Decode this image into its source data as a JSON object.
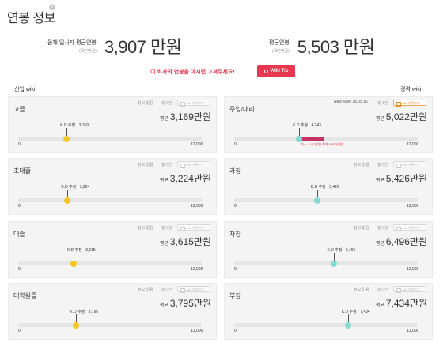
{
  "title": "연봉 정보",
  "summary": {
    "new_hire": {
      "label": "올해 입사자 평균연봉",
      "sub": "(국민연금)",
      "value": "3,907 만원"
    },
    "avg": {
      "label": "평균연봉",
      "sub": "(국민연금)",
      "value": "5,503 만원"
    }
  },
  "notice": "이 회사의 연봉을 아시면 고쳐주세요!",
  "wiki_tip": "Wiki Tip",
  "columns": {
    "left": "신입 wiki",
    "right": "경력 wiki"
  },
  "common": {
    "info": "정보 없음",
    "count": "총 0건",
    "wiki_btn": "wiki 기록보기",
    "avg_prefix": "평균",
    "min": "0",
    "max": "12,000",
    "kd_prefix": "K.D 추정"
  },
  "left_panels": [
    {
      "name": "고졸",
      "avg": "3,169만원",
      "kd": "3,169",
      "level": 0.264
    },
    {
      "name": "초대졸",
      "avg": "3,224만원",
      "kd": "3,224",
      "level": 0.269
    },
    {
      "name": "대졸",
      "avg": "3,615만원",
      "kd": "3,615",
      "level": 0.301
    },
    {
      "name": "대학원졸",
      "avg": "3,795만원",
      "kd": "3,795",
      "level": 0.316
    }
  ],
  "right_panels": [
    {
      "name": "주임/대리",
      "avg": "5,022만원",
      "kd": "4,243",
      "level": 0.354,
      "save": "New save 18.05.15",
      "count": "총 1건",
      "range_label": "최소 4,243만원 최대 5,880만원",
      "range": [
        0.354,
        0.49
      ]
    },
    {
      "name": "과장",
      "avg": "5,426만원",
      "kd": "5,426",
      "level": 0.452
    },
    {
      "name": "차장",
      "avg": "6,496만원",
      "kd": "6,496",
      "level": 0.541
    },
    {
      "name": "부장",
      "avg": "7,434만원",
      "kd": "7,434",
      "level": 0.62
    }
  ],
  "colors": {
    "accent": "#e8384f",
    "newhire_marker": "#f6c623",
    "career_marker": "#84dcd1"
  },
  "icons": [
    "help-icon",
    "wiki-tip-icon",
    "wiki-note-icon"
  ]
}
